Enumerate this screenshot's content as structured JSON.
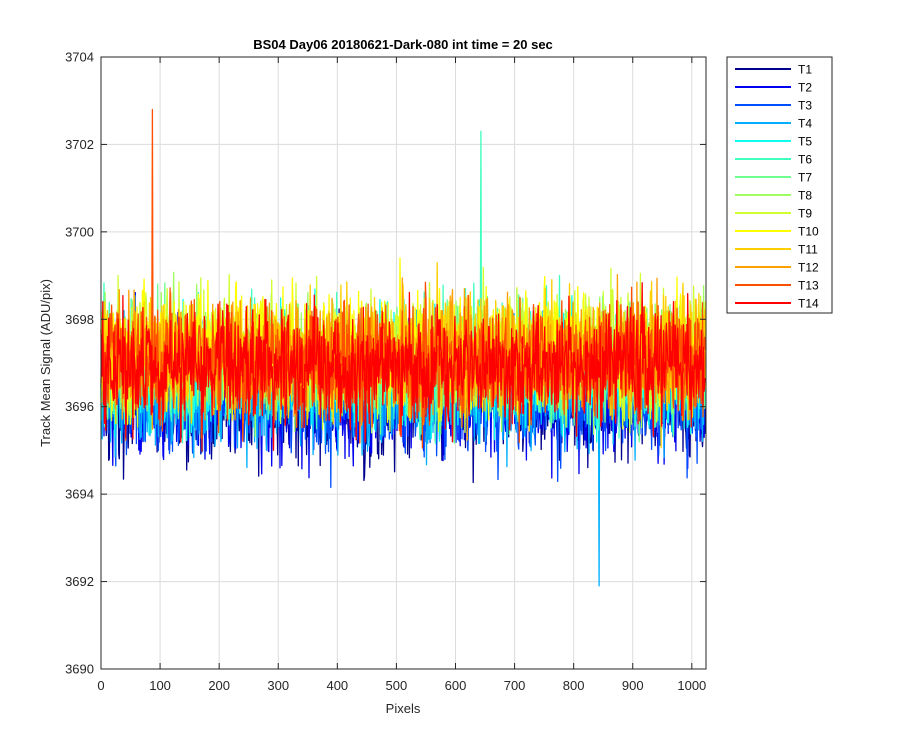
{
  "chart_data": {
    "type": "line",
    "title": "BS04 Day06 20180621-Dark-080 int time = 20 sec",
    "xlabel": "Pixels",
    "ylabel": "Track Mean Signal (ADU/pix)",
    "xlim": [
      0,
      1024
    ],
    "ylim": [
      3690,
      3704
    ],
    "xticks": [
      0,
      100,
      200,
      300,
      400,
      500,
      600,
      700,
      800,
      900,
      1000
    ],
    "yticks": [
      3690,
      3692,
      3694,
      3696,
      3698,
      3700,
      3702,
      3704
    ],
    "grid": true,
    "legend_position": "outside-top-right",
    "series": [
      {
        "name": "T1",
        "color": "#00008f",
        "mean": 3696.2,
        "sd": 0.95
      },
      {
        "name": "T2",
        "color": "#0000ef",
        "mean": 3696.2,
        "sd": 0.95
      },
      {
        "name": "T3",
        "color": "#004fff",
        "mean": 3696.3,
        "sd": 0.95
      },
      {
        "name": "T4",
        "color": "#00afff",
        "mean": 3696.4,
        "sd": 0.95
      },
      {
        "name": "T5",
        "color": "#0fffef",
        "mean": 3696.8,
        "sd": 0.9
      },
      {
        "name": "T6",
        "color": "#3fffbf",
        "mean": 3696.9,
        "sd": 0.9
      },
      {
        "name": "T7",
        "color": "#6fff8f",
        "mean": 3697.0,
        "sd": 0.9
      },
      {
        "name": "T8",
        "color": "#9fff5f",
        "mean": 3697.1,
        "sd": 0.9
      },
      {
        "name": "T9",
        "color": "#cfff2f",
        "mean": 3697.3,
        "sd": 0.9
      },
      {
        "name": "T10",
        "color": "#ffff00",
        "mean": 3697.3,
        "sd": 0.9
      },
      {
        "name": "T11",
        "color": "#ffcf00",
        "mean": 3697.2,
        "sd": 0.9
      },
      {
        "name": "T12",
        "color": "#ff9f00",
        "mean": 3697.1,
        "sd": 0.9
      },
      {
        "name": "T13",
        "color": "#ff4f00",
        "mean": 3697.0,
        "sd": 0.9
      },
      {
        "name": "T14",
        "color": "#ff0000",
        "mean": 3696.9,
        "sd": 0.9
      }
    ],
    "annotations": [
      {
        "series": "T13",
        "x": 87,
        "y": 3702.8
      },
      {
        "series": "T6",
        "x": 643,
        "y": 3702.3
      },
      {
        "series": "T4",
        "x": 843,
        "y": 3691.9
      }
    ]
  }
}
